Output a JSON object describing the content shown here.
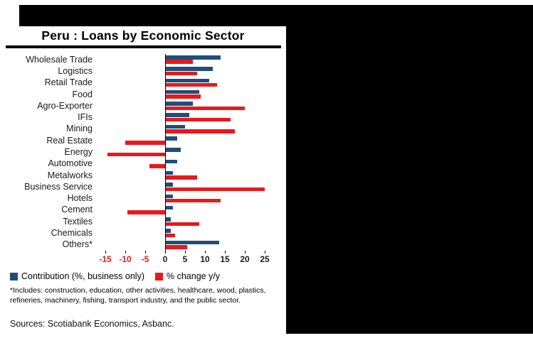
{
  "title": "Peru : Loans by Economic Sector",
  "colors": {
    "blue": "#1F4E79",
    "red": "#E8191C"
  },
  "chart_data": {
    "type": "bar",
    "orientation": "horizontal",
    "title": "Peru : Loans by Economic Sector",
    "categories": [
      "Wholesale Trade",
      "Logistics",
      "Retail Trade",
      "Food",
      "Agro-Exporter",
      "IFIs",
      "Mining",
      "Real Estate",
      "Energy",
      "Automotive",
      "Metalworks",
      "Business Service",
      "Hotels",
      "Cement",
      "Textiles",
      "Chemicals",
      "Others*"
    ],
    "series": [
      {
        "name": "Contribution (%, business only)",
        "color": "#1F4E79",
        "values": [
          14,
          12,
          11,
          8.5,
          7,
          6,
          5,
          3,
          4,
          3,
          2,
          2,
          2,
          2,
          1.5,
          1.5,
          13.5
        ]
      },
      {
        "name": "% change y/y",
        "color": "#E8191C",
        "values": [
          7,
          8,
          13,
          9,
          20,
          16.5,
          17.5,
          -10,
          -14.5,
          -4,
          8,
          25,
          14,
          -9.5,
          8.5,
          2.5,
          5.5
        ]
      }
    ],
    "xticks": [
      -15,
      -10,
      -5,
      0,
      5,
      10,
      15,
      20,
      25
    ],
    "xlim": [
      -17.5,
      27.5
    ],
    "xlabel": "",
    "ylabel": "",
    "grid": false,
    "legend_position": "bottom-left",
    "negative_tick_color": "#E8191C"
  },
  "footnote": "*Includes: construction, education, other activities, healthcare, wood, plastics, refineries, machinery, fishing, transport industry, and the public sector.",
  "sources": "Sources: Scotiabank Economics, Asbanc."
}
